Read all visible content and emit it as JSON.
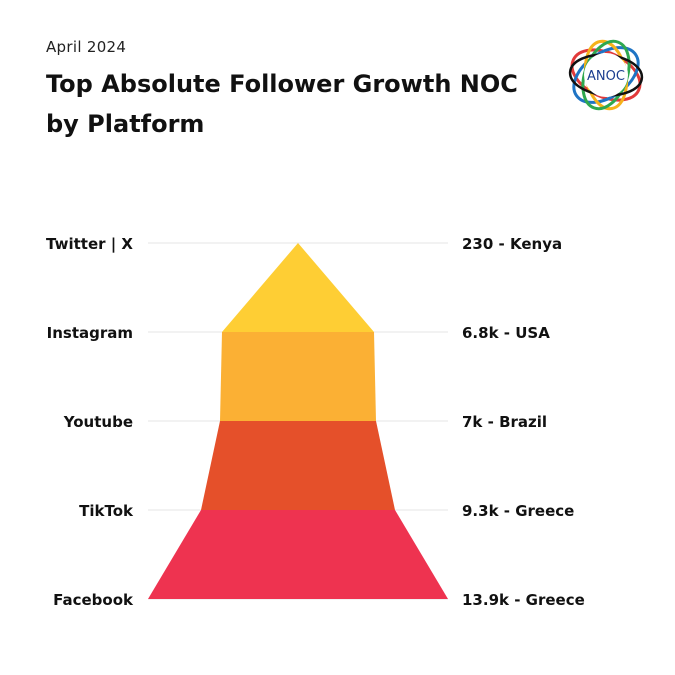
{
  "header": {
    "date": "April 2024",
    "title_line1": "Top Absolute Follower Growth NOC",
    "title_line2": "by Platform",
    "logo_text": "ANOC"
  },
  "chart_data": {
    "type": "funnel",
    "title": "Top Absolute Follower Growth NOC by Platform",
    "subtitle": "April 2024",
    "categories": [
      "Twitter | X",
      "Instagram",
      "Youtube",
      "TikTok",
      "Facebook"
    ],
    "values": [
      230,
      6800,
      7000,
      9300,
      13900
    ],
    "value_labels": [
      "230 - Kenya",
      "6.8k - USA",
      "7k - Brazil",
      "9.3k - Greece",
      "13.9k - Greece"
    ],
    "countries": [
      "Kenya",
      "USA",
      "Brazil",
      "Greece",
      "Greece"
    ],
    "colors": [
      "#FECE34",
      "#FBB034",
      "#E5502A",
      "#EE3350"
    ],
    "grid": true
  }
}
